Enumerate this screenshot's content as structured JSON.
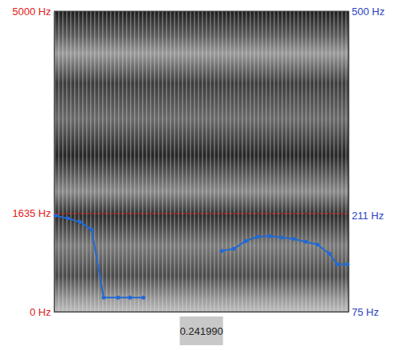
{
  "chart_data": {
    "type": "line",
    "xlabel": "0.241990",
    "xlim": [
      0,
      0.24199
    ],
    "ylim": [
      0,
      5000
    ],
    "yticks": [
      {
        "value": 0,
        "label": "0 Hz"
      },
      {
        "value": 1635,
        "label": "1635 Hz"
      },
      {
        "value": 5000,
        "label": "5000 Hz"
      }
    ],
    "y2lim": [
      75,
      500
    ],
    "y2ticks": [
      {
        "value": 75,
        "label": "75 Hz"
      },
      {
        "value": 211,
        "label": "211 Hz"
      },
      {
        "value": 500,
        "label": "500 Hz"
      }
    ],
    "tick_labels": "y",
    "grid": false,
    "x": [
      0.0013,
      0.0111,
      0.021,
      0.0308,
      0.0407,
      0.0525,
      0.0623,
      0.0734,
      0.1,
      0.1377,
      0.1476,
      0.1574,
      0.1672,
      0.1771,
      0.1869,
      0.1967,
      0.2066,
      0.2164,
      0.2262,
      0.2328,
      0.2413
    ],
    "series": [
      {
        "axis": "y2",
        "color": "#1f6ad8",
        "marker": "circle",
        "line_style": "solid",
        "values": [
          211,
          207,
          202,
          191,
          95,
          95,
          95,
          95,
          null,
          161,
          164,
          175,
          181,
          182,
          180,
          178,
          174,
          170,
          157,
          142,
          142
        ]
      }
    ]
  }
}
